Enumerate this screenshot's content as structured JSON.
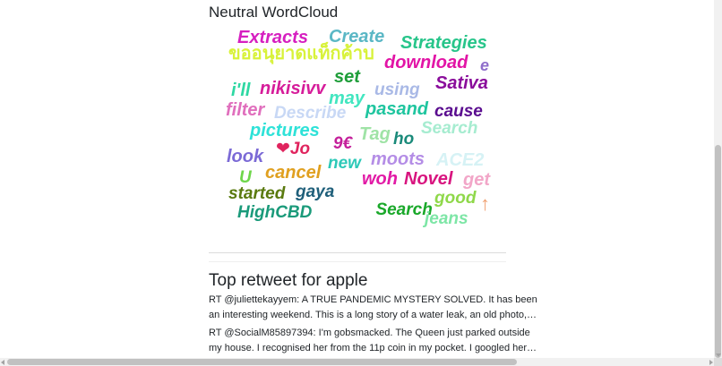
{
  "wordcloud": {
    "title": "Neutral WordCloud",
    "words": [
      {
        "text": "Extracts",
        "color": "#d61fc0"
      },
      {
        "text": "Create",
        "color": "#5ab7c5"
      },
      {
        "text": "Strategies",
        "color": "#27c58a"
      },
      {
        "text": "ขออนุยาดแท็กค้าบ",
        "color": "#d8f23a"
      },
      {
        "text": "download",
        "color": "#e214a6"
      },
      {
        "text": "e",
        "color": "#8f6ecb"
      },
      {
        "text": "set",
        "color": "#1f9e3a"
      },
      {
        "text": "i'll",
        "color": "#2ed8a3"
      },
      {
        "text": "nikisivv",
        "color": "#d61c9a"
      },
      {
        "text": "using",
        "color": "#a9b9e6"
      },
      {
        "text": "Sativa",
        "color": "#8a0d9b"
      },
      {
        "text": "may",
        "color": "#42e6c0"
      },
      {
        "text": "filter",
        "color": "#e06fbd"
      },
      {
        "text": "Describe",
        "color": "#c8d8f5"
      },
      {
        "text": "pasand",
        "color": "#1fc59f"
      },
      {
        "text": "cause",
        "color": "#5a0d8f"
      },
      {
        "text": "pictures",
        "color": "#2ee2d8"
      },
      {
        "text": "Tag",
        "color": "#9fe3a6"
      },
      {
        "text": "ho",
        "color": "#1a8a7a"
      },
      {
        "text": "Search",
        "color": "#a6ecd0"
      },
      {
        "text": "look",
        "color": "#7b6ad6"
      },
      {
        "text": "❤Jo",
        "color": "#e0245e"
      },
      {
        "text": "9€",
        "color": "#c41f9a"
      },
      {
        "text": "new",
        "color": "#2dc9b8"
      },
      {
        "text": "moots",
        "color": "#b48de6"
      },
      {
        "text": "ACE2",
        "color": "#d6f2f5"
      },
      {
        "text": "U",
        "color": "#6ed64a"
      },
      {
        "text": "cancel",
        "color": "#e0a020"
      },
      {
        "text": "woh",
        "color": "#e21aa6"
      },
      {
        "text": "Novel",
        "color": "#d8147f"
      },
      {
        "text": "get",
        "color": "#f2a6c8"
      },
      {
        "text": "started",
        "color": "#5a7a0f"
      },
      {
        "text": "gaya",
        "color": "#1f5f7a"
      },
      {
        "text": "good",
        "color": "#8fd84a"
      },
      {
        "text": "HighCBD",
        "color": "#1a9a7a"
      },
      {
        "text": "ᅟᅟᅟSearch",
        "color": "#1aa82a"
      },
      {
        "text": "jeans",
        "color": "#7de6a6"
      },
      {
        "text": "↑",
        "color": "#f0a070"
      }
    ]
  },
  "retweets": {
    "title": "Top retweet for apple",
    "tweets": [
      {
        "line1": "RT @juliettekayyem: A TRUE PANDEMIC MYSTERY SOLVED. It has been",
        "line2": "an interesting weekend. This is a long story of a water leak, an old photo,…"
      },
      {
        "line1": "RT @SocialM85897394: I'm gobsmacked. The Queen just parked outside",
        "line2": "my house. I recognised her from the 11p coin in my pocket. I googled her…"
      }
    ]
  }
}
